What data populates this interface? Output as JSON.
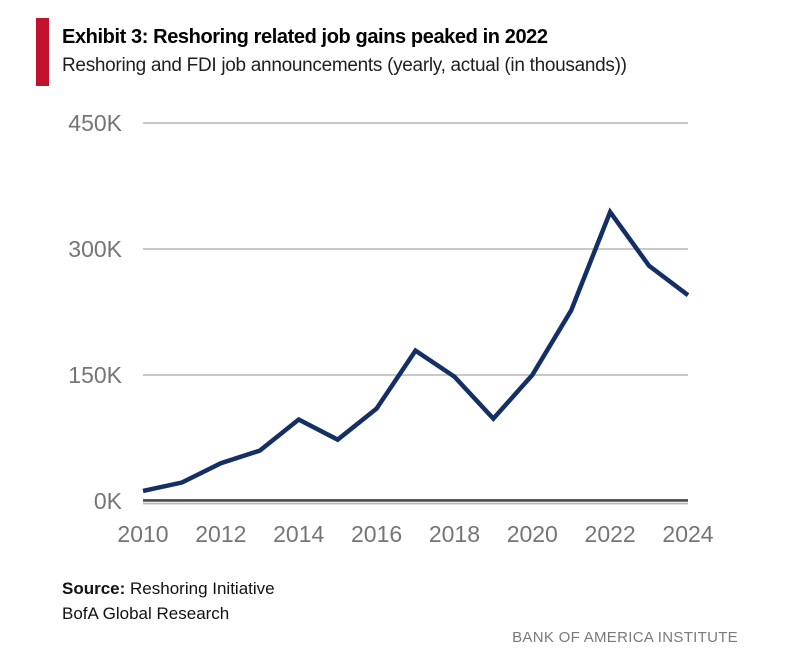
{
  "header": {
    "exhibit_title": "Exhibit 3: Reshoring related job gains peaked in 2022",
    "subtitle": "Reshoring and FDI job announcements (yearly, actual (in thousands))",
    "accent_color": "#C2122E"
  },
  "chart_data": {
    "type": "line",
    "title": "Reshoring related job gains peaked in 2022",
    "subtitle": "Reshoring and FDI job announcements (yearly, actual (in thousands))",
    "xlabel": "",
    "ylabel": "",
    "x": [
      2010,
      2011,
      2012,
      2013,
      2014,
      2015,
      2016,
      2017,
      2018,
      2019,
      2020,
      2021,
      2022,
      2023,
      2024
    ],
    "series": [
      {
        "name": "Reshoring and FDI job announcements (thousands)",
        "values": [
          12,
          22,
          45,
          60,
          97,
          73,
          110,
          179,
          148,
          98,
          150,
          227,
          344,
          280,
          245
        ]
      }
    ],
    "ylim": [
      0,
      450
    ],
    "y_ticks": [
      {
        "value": 0,
        "label": "0K"
      },
      {
        "value": 150,
        "label": "150K"
      },
      {
        "value": 300,
        "label": "300K"
      },
      {
        "value": 450,
        "label": "450K"
      }
    ],
    "x_tick_labels": [
      "2010",
      "2012",
      "2014",
      "2016",
      "2018",
      "2020",
      "2022",
      "2024"
    ],
    "grid": true,
    "legend": false,
    "line_color": "#142F66",
    "grid_color": "#C9C9C9",
    "axis_color": "#4A4A4A",
    "axis_shadow_color": "#B5B5B5",
    "tick_label_color": "#757575"
  },
  "footer": {
    "source_label": "Source:",
    "source_value": "Reshoring Initiative",
    "source_line2": "BofA Global Research",
    "brand": "BANK OF AMERICA INSTITUTE"
  }
}
